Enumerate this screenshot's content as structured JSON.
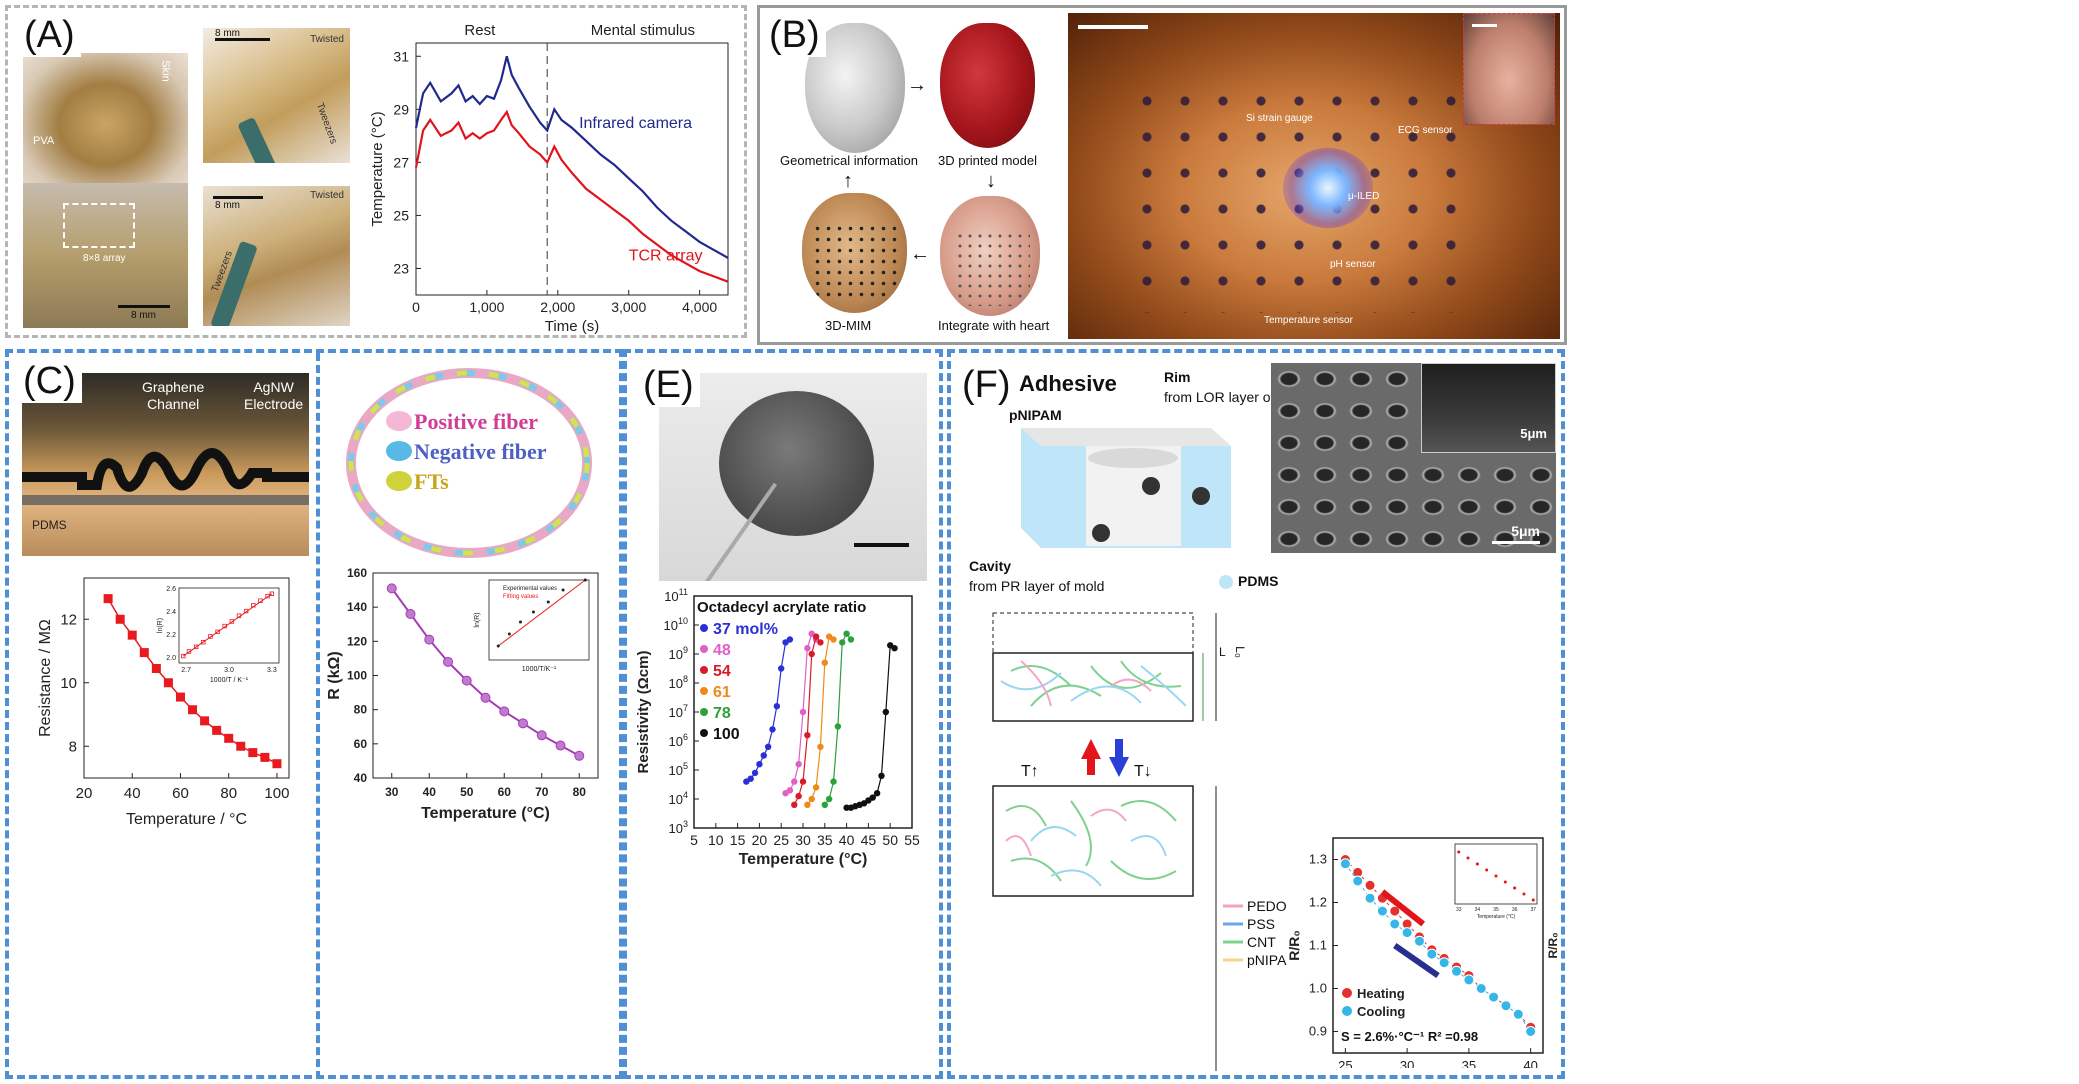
{
  "panels": {
    "A": {
      "label": "(A)",
      "photos": {
        "skin": "Skin",
        "pva": "PVA",
        "twisted1": "Twisted",
        "tweezers1": "Tweezers",
        "scale1": "8 mm",
        "array": "8×8 array",
        "scale2": "8 mm",
        "twisted2": "Twisted",
        "scale3": "8 mm",
        "tweezers2": "Tweezers"
      }
    },
    "B": {
      "label": "(B)",
      "steps": [
        "Geometrical information",
        "3D printed model",
        "Integrate with heart",
        "3D-MIM"
      ],
      "annotations": [
        "Si strain gauge",
        "ECG sensor",
        "μ-ILED",
        "pH sensor",
        "Temperature sensor"
      ]
    },
    "C": {
      "label": "(C)",
      "graphene": "Graphene\nChannel",
      "agnw": "AgNW\nElectrode",
      "pdms": "PDMS"
    },
    "D": {
      "legend": [
        "Positive fiber",
        "Negative fiber",
        "FTs"
      ]
    },
    "E": {
      "label": "(E)"
    },
    "F": {
      "label": "(F)",
      "adhesive": "Adhesive",
      "pnipam": "pNIPAM",
      "rim": "Rim",
      "rim_sub": "from LOR layer of mold",
      "cavity": "Cavity",
      "cavity_sub": "from PR layer of mold",
      "pdms": "PDMS",
      "sem_scale1": "5μm",
      "sem_scale2": "5μm",
      "t_up": "T↑",
      "t_down": "T↓",
      "L": "L",
      "L0": "L₀",
      "legend": [
        "PEDO",
        "PSS",
        "CNT",
        "pNIPA"
      ]
    }
  },
  "chart_data": [
    {
      "id": "A-temp",
      "type": "line",
      "xlabel": "Time (s)",
      "ylabel": "Temperature (°C)",
      "xlim": [
        0,
        4400
      ],
      "ylim": [
        22,
        31.5
      ],
      "xticks": [
        0,
        1000,
        2000,
        3000,
        4000
      ],
      "xtick_labels": [
        "0",
        "1,000",
        "2,000",
        "3,000",
        "4,000"
      ],
      "yticks": [
        23,
        25,
        27,
        29,
        31
      ],
      "region_labels": [
        "Rest",
        "Mental stimulus"
      ],
      "divider_x": 1850,
      "series": [
        {
          "name": "Infrared camera",
          "color": "#1f2a8c",
          "x": [
            0,
            100,
            200,
            350,
            500,
            600,
            700,
            800,
            900,
            1000,
            1100,
            1200,
            1280,
            1350,
            1450,
            1600,
            1750,
            1850,
            1950,
            2050,
            2200,
            2400,
            2600,
            2800,
            3000,
            3200,
            3400,
            3600,
            3800,
            4000,
            4200,
            4400
          ],
          "y": [
            28.3,
            29.6,
            30.0,
            29.3,
            29.6,
            29.9,
            29.3,
            29.5,
            29.2,
            29.5,
            29.4,
            30.1,
            31.0,
            30.3,
            29.8,
            29.1,
            28.5,
            28.2,
            29.0,
            28.6,
            28.3,
            27.8,
            27.3,
            26.9,
            26.4,
            25.9,
            25.3,
            24.8,
            24.4,
            24.0,
            23.7,
            23.4
          ]
        },
        {
          "name": "TCR array",
          "color": "#e0141c",
          "x": [
            0,
            100,
            200,
            350,
            500,
            600,
            700,
            800,
            900,
            1000,
            1100,
            1200,
            1280,
            1350,
            1450,
            1600,
            1750,
            1850,
            1950,
            2050,
            2200,
            2400,
            2600,
            2800,
            3000,
            3200,
            3400,
            3600,
            3800,
            4000,
            4200,
            4400
          ],
          "y": [
            26.8,
            28.2,
            28.6,
            28.0,
            28.2,
            28.5,
            27.9,
            28.1,
            27.9,
            28.1,
            28.2,
            28.6,
            28.9,
            28.4,
            28.1,
            27.6,
            27.3,
            27.0,
            27.6,
            27.1,
            26.6,
            26.0,
            25.6,
            25.2,
            24.8,
            24.3,
            23.9,
            23.5,
            23.2,
            22.9,
            22.7,
            22.5
          ]
        }
      ]
    },
    {
      "id": "C-resistance",
      "type": "line",
      "xlabel": "Temperature / °C",
      "ylabel": "Resistance / MΩ",
      "xlim": [
        20,
        105
      ],
      "ylim": [
        7,
        13.3
      ],
      "xticks": [
        20,
        40,
        60,
        80,
        100
      ],
      "yticks": [
        8,
        10,
        12
      ],
      "series": [
        {
          "name": "",
          "color": "#e8191f",
          "x": [
            30,
            35,
            40,
            45,
            50,
            55,
            60,
            65,
            70,
            75,
            80,
            85,
            90,
            95,
            100
          ],
          "y": [
            12.65,
            12.0,
            11.5,
            10.95,
            10.45,
            10.0,
            9.55,
            9.15,
            8.8,
            8.5,
            8.25,
            8.0,
            7.8,
            7.65,
            7.45
          ]
        }
      ],
      "inset": {
        "xlabel": "1000/T / K⁻¹",
        "ylabel": "ln(R)",
        "xlim": [
          2.65,
          3.35
        ],
        "ylim": [
          1.95,
          2.6
        ],
        "xticks": [
          2.7,
          3.0,
          3.3
        ],
        "yticks": [
          2.0,
          2.2,
          2.4,
          2.6
        ],
        "x": [
          2.68,
          2.72,
          2.77,
          2.82,
          2.87,
          2.92,
          2.97,
          3.02,
          3.07,
          3.12,
          3.17,
          3.22,
          3.27,
          3.3
        ],
        "y": [
          2.01,
          2.05,
          2.09,
          2.13,
          2.18,
          2.22,
          2.27,
          2.31,
          2.36,
          2.4,
          2.45,
          2.49,
          2.53,
          2.55
        ]
      }
    },
    {
      "id": "D-resistance",
      "type": "line",
      "xlabel": "Temperature (°C)",
      "ylabel": "R (kΩ)",
      "xlim": [
        25,
        85
      ],
      "ylim": [
        40,
        160
      ],
      "xticks": [
        30,
        40,
        50,
        60,
        70,
        80
      ],
      "yticks": [
        40,
        60,
        80,
        100,
        120,
        140,
        160
      ],
      "series": [
        {
          "name": "",
          "color": "#a63cb3",
          "x": [
            30,
            35,
            40,
            45,
            50,
            55,
            60,
            65,
            70,
            75,
            80
          ],
          "y": [
            151,
            136,
            121,
            108,
            97,
            87,
            79,
            72,
            65,
            59,
            53
          ]
        }
      ],
      "inset": {
        "xlabel": "1000/T/K⁻¹",
        "ylabel": "ln(R)",
        "legend": [
          "Experimental values",
          "Fitting values"
        ],
        "xlim": [
          2.78,
          3.32
        ],
        "ylim": [
          10.8,
          11.2
        ],
        "x": [
          2.83,
          2.89,
          2.95,
          3.02,
          3.1,
          3.18,
          3.3
        ],
        "y": [
          10.87,
          10.93,
          10.99,
          11.04,
          11.09,
          11.15,
          11.2
        ]
      }
    },
    {
      "id": "E-resistivity",
      "type": "line",
      "title": "Octadecyl acrylate ratio",
      "xlabel": "Temperature (°C)",
      "ylabel": "Resistivity (Ωcm)",
      "xlim": [
        5,
        55
      ],
      "ylim_log10": [
        3,
        11
      ],
      "log_y": true,
      "xticks": [
        5,
        10,
        15,
        20,
        25,
        30,
        35,
        40,
        45,
        50,
        55
      ],
      "series": [
        {
          "name": "37 mol%",
          "color": "#2a30d6",
          "x": [
            17,
            18,
            19,
            20,
            21,
            22,
            23,
            24,
            25,
            26,
            27
          ],
          "y": [
            4.6,
            4.7,
            4.9,
            5.2,
            5.5,
            5.8,
            6.4,
            7.2,
            8.5,
            9.4,
            9.5
          ]
        },
        {
          "name": "48",
          "color": "#e060c8",
          "x": [
            26,
            27,
            28,
            29,
            30,
            31,
            32,
            33
          ],
          "y": [
            4.2,
            4.3,
            4.6,
            5.2,
            7.0,
            9.2,
            9.7,
            9.5
          ]
        },
        {
          "name": "54",
          "color": "#d81b2c",
          "x": [
            28,
            29,
            30,
            31,
            32,
            33,
            34
          ],
          "y": [
            3.8,
            4.1,
            4.6,
            6.2,
            9.0,
            9.6,
            9.4
          ]
        },
        {
          "name": "61",
          "color": "#ef8a1a",
          "x": [
            31,
            32,
            33,
            34,
            35,
            36,
            37
          ],
          "y": [
            3.8,
            4.0,
            4.4,
            5.8,
            8.7,
            9.6,
            9.5
          ]
        },
        {
          "name": "78",
          "color": "#2ca039",
          "x": [
            35,
            36,
            37,
            38,
            39,
            40,
            41
          ],
          "y": [
            3.8,
            4.0,
            4.6,
            6.5,
            9.4,
            9.7,
            9.5
          ]
        },
        {
          "name": "100",
          "color": "#111111",
          "x": [
            40,
            41,
            42,
            43,
            44,
            45,
            46,
            47,
            48,
            49,
            50,
            51
          ],
          "y": [
            3.7,
            3.7,
            3.75,
            3.8,
            3.85,
            3.95,
            4.05,
            4.2,
            4.8,
            7.0,
            9.3,
            9.2
          ]
        }
      ]
    },
    {
      "id": "F-ratio",
      "type": "line",
      "xlabel": "Temperature (°C)",
      "ylabel": "R/R₀",
      "xlim": [
        24,
        41
      ],
      "ylim": [
        0.85,
        1.35
      ],
      "xticks": [
        25,
        30,
        35,
        40
      ],
      "yticks": [
        0.9,
        1.0,
        1.1,
        1.2,
        1.3
      ],
      "annotation": "S = 2.6%·°C⁻¹   R² =0.98",
      "series": [
        {
          "name": "Heating",
          "color": "#e3312d",
          "x": [
            25,
            26,
            27,
            28,
            29,
            30,
            31,
            32,
            33,
            34,
            35,
            36,
            37,
            38,
            39,
            40
          ],
          "y": [
            1.3,
            1.27,
            1.24,
            1.21,
            1.18,
            1.15,
            1.12,
            1.09,
            1.07,
            1.05,
            1.03,
            1.0,
            0.98,
            0.96,
            0.94,
            0.91
          ]
        },
        {
          "name": "Cooling",
          "color": "#35b6e6",
          "x": [
            25,
            26,
            27,
            28,
            29,
            30,
            31,
            32,
            33,
            34,
            35,
            36,
            37,
            38,
            39,
            40
          ],
          "y": [
            1.29,
            1.25,
            1.21,
            1.18,
            1.15,
            1.13,
            1.11,
            1.08,
            1.06,
            1.04,
            1.02,
            1.0,
            0.98,
            0.96,
            0.94,
            0.9
          ]
        }
      ],
      "inset": {
        "xlabel": "Temperature (°C)",
        "xticks": [
          33,
          34,
          35,
          36,
          37
        ],
        "yticks": [
          1.05,
          1.0,
          0.95
        ],
        "x": [
          33,
          33.5,
          34,
          34.5,
          35,
          35.5,
          36,
          36.5,
          37
        ],
        "y": [
          1.06,
          1.045,
          1.03,
          1.015,
          1.0,
          0.985,
          0.97,
          0.955,
          0.94
        ]
      }
    }
  ]
}
